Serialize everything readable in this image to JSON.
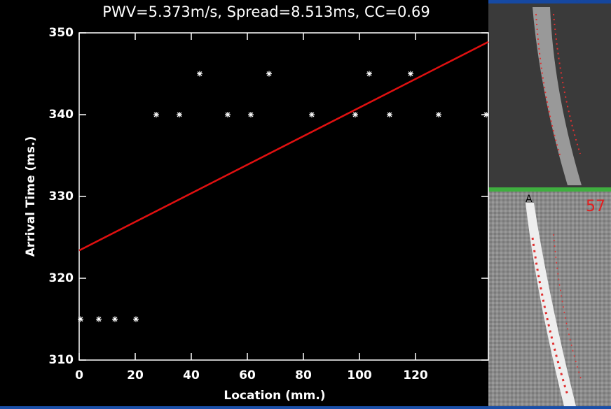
{
  "chart_data": {
    "type": "scatter",
    "title": "PWV=5.373m/s, Spread=8.513ms, CC=0.69",
    "x_label": "Location (mm.)",
    "y_label": "Arrival Time (ms.)",
    "x": [
      0.5,
      7,
      12.75,
      20.25,
      27.5,
      35.75,
      43,
      53,
      61.25,
      67.75,
      83,
      98.5,
      103.5,
      110.75,
      118.25,
      128.25,
      145.25
    ],
    "values": [
      315,
      315,
      315,
      315,
      340,
      340,
      345,
      340,
      340,
      345,
      340,
      340,
      345,
      340,
      345,
      340,
      340
    ],
    "color": "#ffffff",
    "fit": {
      "x": [
        0,
        146
      ],
      "values": [
        323.4,
        348.9
      ],
      "color": "#e01010"
    },
    "xlim": [
      0,
      146
    ],
    "ylim": [
      310,
      350
    ],
    "xticks": [
      0,
      20,
      40,
      60,
      80,
      100,
      120
    ],
    "yticks": [
      310,
      320,
      330,
      340,
      350
    ]
  },
  "image_labels": {
    "top_right_number": "57",
    "orientation": "A"
  }
}
